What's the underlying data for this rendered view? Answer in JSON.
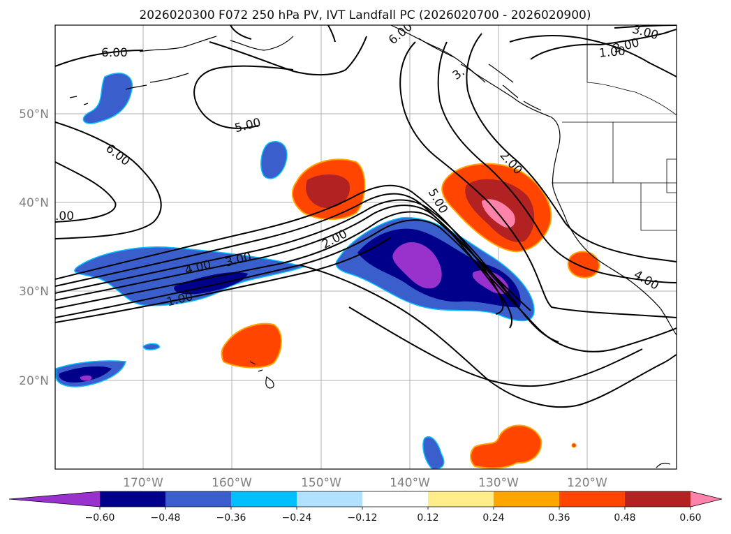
{
  "title": "2026020300 F072 250 hPa PV, IVT Landfall PC (2026020700 - 2026020900)",
  "map": {
    "lon_labels": [
      "170°W",
      "160°W",
      "150°W",
      "140°W",
      "130°W",
      "120°W"
    ],
    "lat_labels": [
      "50°N",
      "40°N",
      "30°N",
      "20°N"
    ],
    "gridlines": true
  },
  "contour_labels": [
    "6.00",
    "6.00",
    "5.00",
    "5.00",
    "6.00",
    "3.00",
    "2.00",
    "1.00",
    "3.",
    "2.00",
    "4.00",
    "3.00",
    "2.00",
    "1.00",
    ".00",
    "4.00"
  ],
  "colorbar": {
    "colors": [
      "#9932cc",
      "#00008b",
      "#3a5fcd",
      "#00bfff",
      "#b0e2ff",
      "#ffffff",
      "#ffec8b",
      "#ffa500",
      "#ff4500",
      "#b22222",
      "#ff82ab"
    ],
    "ticks": [
      "−0.60",
      "−0.48",
      "−0.36",
      "−0.24",
      "−0.12",
      "0.12",
      "0.24",
      "0.36",
      "0.48",
      "0.60"
    ],
    "extend": "both"
  }
}
